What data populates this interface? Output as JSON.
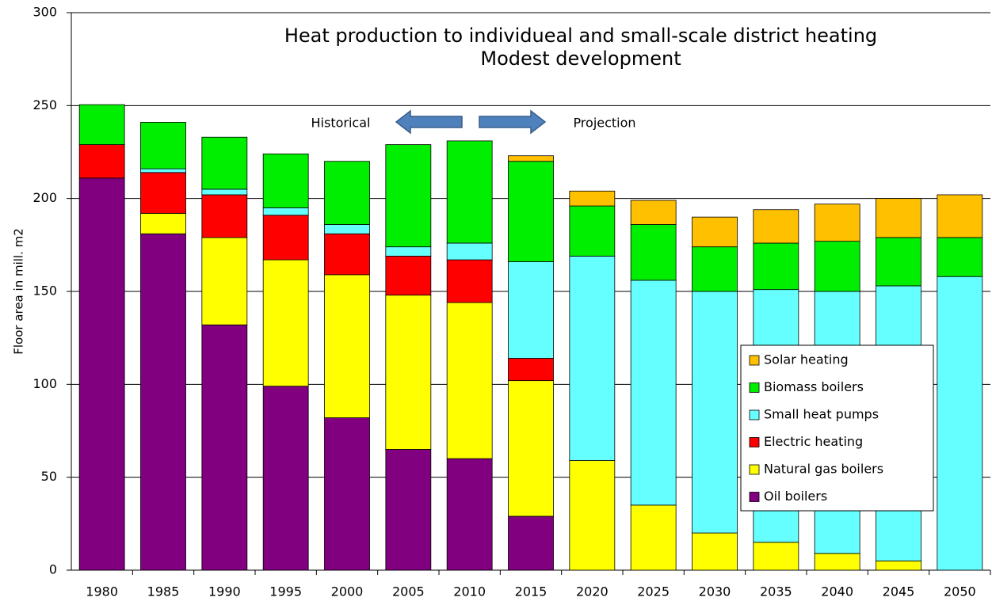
{
  "chart_data": {
    "type": "stacked_bar",
    "title": "Heat production to individueal and small-scale district heating",
    "subtitle": "Modest development",
    "y_label": "Floor area in mill. m2",
    "annotations": [
      "Historical",
      "Projection"
    ],
    "categories": [
      "1980",
      "1985",
      "1990",
      "1995",
      "2000",
      "2005",
      "2010",
      "2015",
      "2020",
      "2025",
      "2030",
      "2035",
      "2040",
      "2045",
      "2050"
    ],
    "series": [
      {
        "name": "Oil boilers",
        "color": "#800080",
        "values": [
          211,
          181,
          132,
          99,
          82,
          65,
          60,
          29,
          0,
          0,
          0,
          0,
          0,
          0,
          0
        ]
      },
      {
        "name": "Natural gas boilers",
        "color": "#ffff00",
        "values": [
          0,
          11,
          47,
          68,
          77,
          83,
          84,
          73,
          59,
          35,
          20,
          15,
          9,
          5,
          0
        ]
      },
      {
        "name": "Electric heating",
        "color": "#ff0000",
        "values": [
          18,
          22,
          23,
          24,
          22,
          21,
          23,
          12,
          0,
          0,
          0,
          0,
          0,
          0,
          0
        ]
      },
      {
        "name": "Small heat pumps",
        "color": "#66ffff",
        "values": [
          0,
          2,
          3,
          4,
          5,
          5,
          9,
          52,
          110,
          121,
          130,
          136,
          141,
          148,
          158
        ]
      },
      {
        "name": "Biomass boilers",
        "color": "#00ee00",
        "values": [
          21.5,
          25,
          28,
          29,
          34,
          55,
          55,
          54,
          27,
          30,
          24,
          25,
          27,
          26,
          21
        ]
      },
      {
        "name": "Solar heating",
        "color": "#ffc000",
        "values": [
          0,
          0,
          0,
          0,
          0,
          0,
          0,
          3,
          8,
          13,
          16,
          18,
          20,
          21,
          23
        ]
      }
    ],
    "ylim": [
      0,
      300
    ],
    "yticks": [
      0,
      50,
      100,
      150,
      200,
      250,
      300
    ],
    "grid": true,
    "legend_position": "lower-right"
  }
}
